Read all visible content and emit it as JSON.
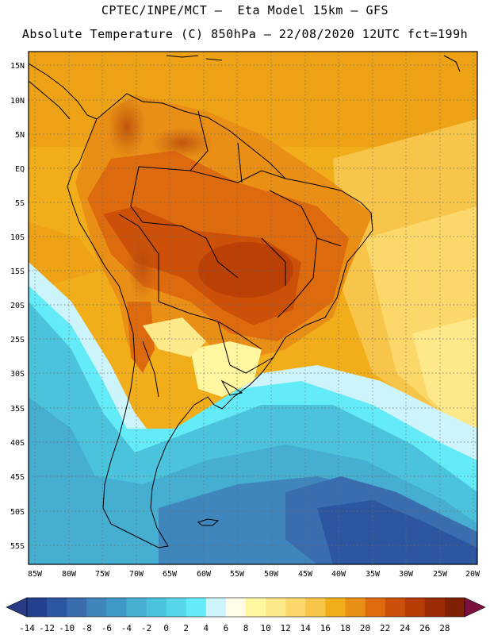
{
  "header": {
    "line1": "CPTEC/INPE/MCT –  Eta Model 15km – GFS",
    "line2": "Absolute Temperature (C) 850hPa – 22/08/2020 12UTC fct=199h"
  },
  "map": {
    "lat_labels": [
      "15N",
      "10N",
      "5N",
      "EQ",
      "5S",
      "10S",
      "15S",
      "20S",
      "25S",
      "30S",
      "35S",
      "40S",
      "45S",
      "50S",
      "55S"
    ],
    "lon_labels": [
      "85W",
      "80W",
      "75W",
      "70W",
      "65W",
      "60W",
      "55W",
      "50W",
      "45W",
      "40W",
      "35W",
      "30W",
      "25W",
      "20W"
    ]
  },
  "colorbar": {
    "labels": [
      "-14",
      "-12",
      "-10",
      "-8",
      "-6",
      "-4",
      "-2",
      "0",
      "2",
      "4",
      "6",
      "8",
      "10",
      "12",
      "14",
      "16",
      "18",
      "20",
      "22",
      "24",
      "26",
      "28"
    ],
    "colors": [
      "#23408f",
      "#2c56a0",
      "#3a6db0",
      "#3f86bd",
      "#3f98c6",
      "#45aed1",
      "#4cc3dc",
      "#56d6e8",
      "#63ecf7",
      "#cdf3fb",
      "#fffbe6",
      "#fff6a0",
      "#fde989",
      "#fcd86b",
      "#f7c54a",
      "#f2ae1a",
      "#e98f15",
      "#de6a0e",
      "#cc5008",
      "#b63c06",
      "#9a2b05",
      "#7f2004"
    ],
    "below_color": "#2b3a86",
    "above_color": "#7d0f3e"
  }
}
